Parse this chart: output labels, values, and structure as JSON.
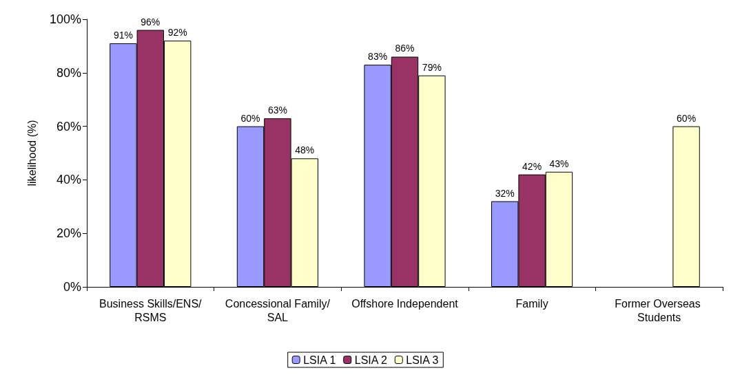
{
  "chart_data": {
    "type": "bar",
    "ylabel": "likelihood (%)",
    "categories": [
      "Business Skills/ENS/RSMS",
      "Concessional Family/SAL",
      "Offshore Independent",
      "Family",
      "Former Overseas Students"
    ],
    "series": [
      {
        "name": "LSIA 1",
        "color": "#9999ff",
        "values": [
          91,
          60,
          83,
          32,
          null
        ],
        "value_labels": [
          "91%",
          "60%",
          "83%",
          "32%",
          null
        ]
      },
      {
        "name": "LSIA 2",
        "color": "#993366",
        "values": [
          96,
          63,
          86,
          42,
          null
        ],
        "value_labels": [
          "96%",
          "63%",
          "86%",
          "42%",
          null
        ]
      },
      {
        "name": "LSIA 3",
        "color": "#ffffcc",
        "values": [
          92,
          48,
          79,
          43,
          60
        ],
        "value_labels": [
          "92%",
          "48%",
          "79%",
          "43%",
          "60%"
        ]
      }
    ],
    "ylim": [
      0,
      100
    ],
    "yticks": [
      {
        "value": 0,
        "label": "0%"
      },
      {
        "value": 20,
        "label": "20%"
      },
      {
        "value": 40,
        "label": "40%"
      },
      {
        "value": 60,
        "label": "60%"
      },
      {
        "value": 80,
        "label": "80%"
      },
      {
        "value": 100,
        "label": "100%"
      }
    ],
    "grid": false,
    "legend": "bottom"
  }
}
